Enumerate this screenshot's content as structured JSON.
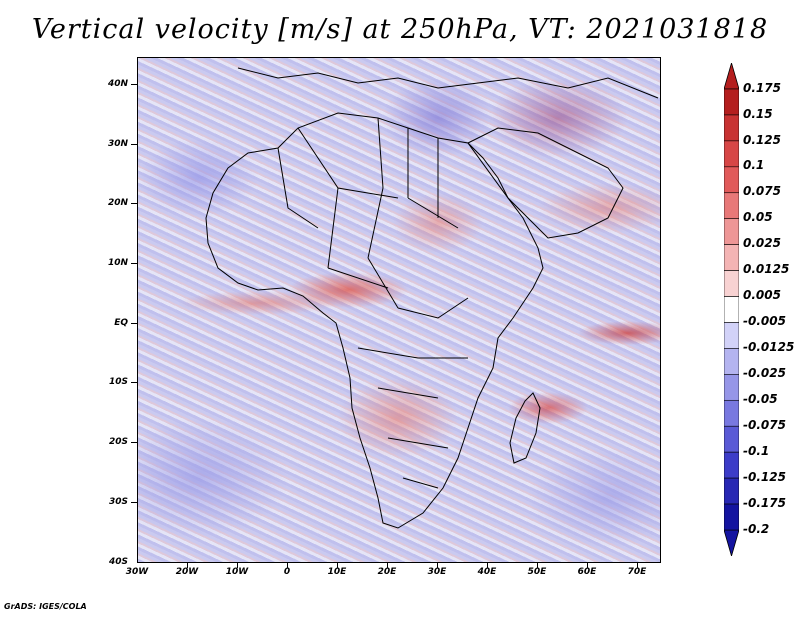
{
  "title": "Vertical velocity [m/s] at 250hPa, VT: 2021031818",
  "map": {
    "region": "Africa",
    "latitude_labels": [
      "40N",
      "30N",
      "20N",
      "10N",
      "EQ",
      "10S",
      "20S",
      "30S",
      "40S"
    ],
    "longitude_labels": [
      "30W",
      "20W",
      "10W",
      "0",
      "10E",
      "20E",
      "30E",
      "40E",
      "50E",
      "60E",
      "70E"
    ]
  },
  "colorbar": {
    "labels": [
      "0.175",
      "0.15",
      "0.125",
      "0.1",
      "0.075",
      "0.05",
      "0.025",
      "0.0125",
      "0.005",
      "-0.005",
      "-0.0125",
      "-0.025",
      "-0.05",
      "-0.075",
      "-0.1",
      "-0.125",
      "-0.175",
      "-0.2"
    ],
    "colors": [
      "#b41e1e",
      "#c83232",
      "#d74646",
      "#e15a5a",
      "#e87878",
      "#ee9696",
      "#f4b4b4",
      "#f8d2d2",
      "#ffffff",
      "#d2d2f8",
      "#b4b4f0",
      "#9696e8",
      "#7878e0",
      "#5a5ad6",
      "#3c3cc8",
      "#2828b4",
      "#1414a0"
    ]
  },
  "credit": "GrADS: IGES/COLA"
}
